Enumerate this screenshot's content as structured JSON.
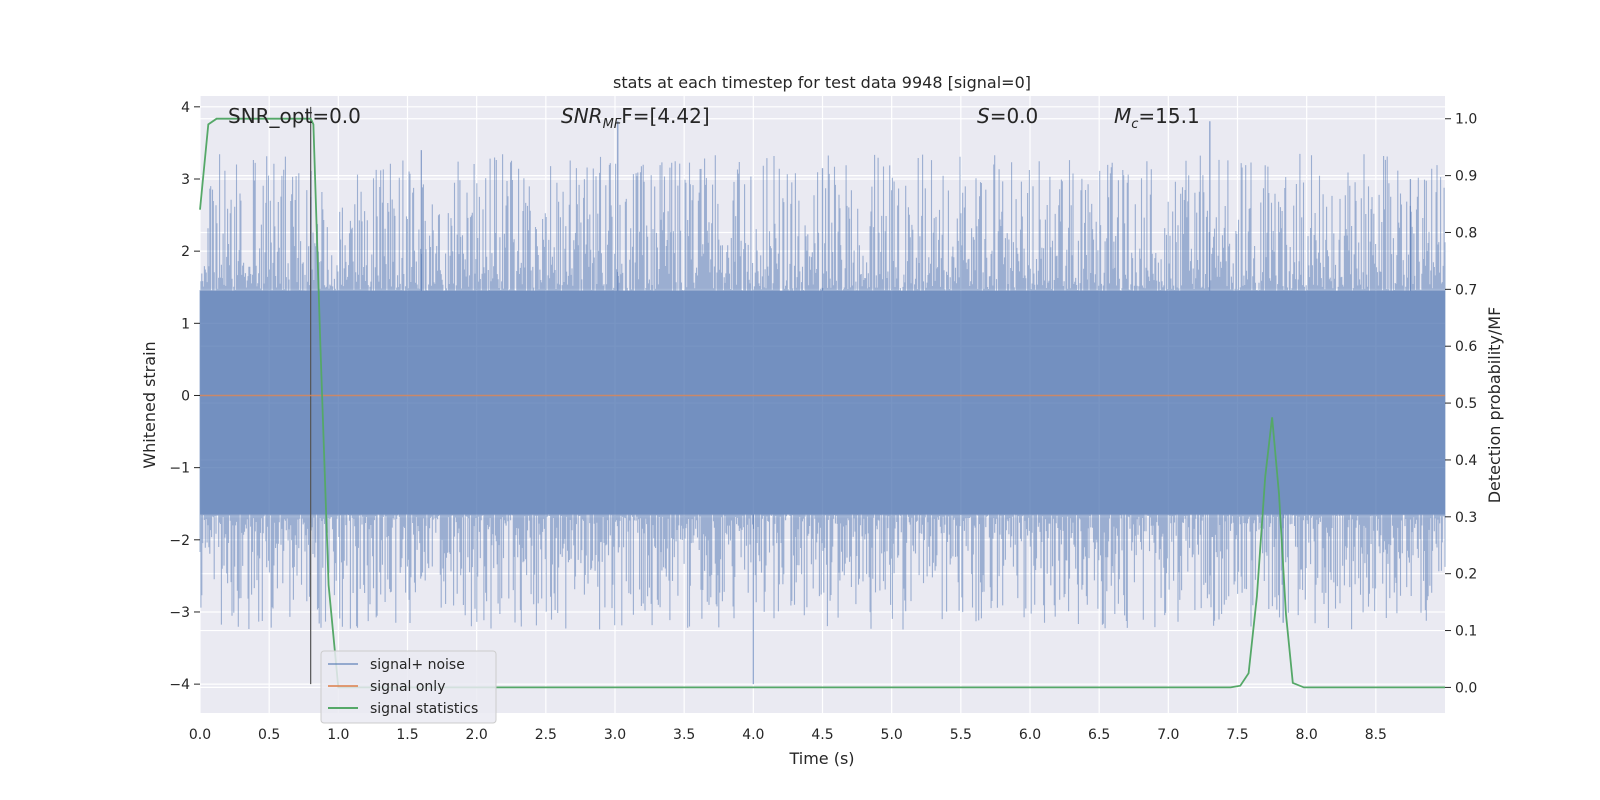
{
  "chart_data": {
    "type": "line",
    "title": "stats at each timestep for test data 9948 [signal=0]",
    "xlabel": "Time (s)",
    "ylabel_left": "Whitened strain",
    "ylabel_right": "Detection probability/MF",
    "xlim": [
      0.0,
      9.0
    ],
    "ylim_left": [
      -4.4,
      4.15
    ],
    "ylim_right": [
      -0.045,
      1.04
    ],
    "x_ticks": [
      0.0,
      0.5,
      1.0,
      1.5,
      2.0,
      2.5,
      3.0,
      3.5,
      4.0,
      4.5,
      5.0,
      5.5,
      6.0,
      6.5,
      7.0,
      7.5,
      8.0,
      8.5
    ],
    "x_tick_labels": [
      "0.0",
      "0.5",
      "1.0",
      "1.5",
      "2.0",
      "2.5",
      "3.0",
      "3.5",
      "4.0",
      "4.5",
      "5.0",
      "5.5",
      "6.0",
      "6.5",
      "7.0",
      "7.5",
      "8.0",
      "8.5"
    ],
    "y_left_ticks": [
      -4,
      -3,
      -2,
      -1,
      0,
      1,
      2,
      3,
      4
    ],
    "y_left_tick_labels": [
      "−4",
      "−3",
      "−2",
      "−1",
      "0",
      "1",
      "2",
      "3",
      "4"
    ],
    "y_right_ticks": [
      0.0,
      0.1,
      0.2,
      0.3,
      0.4,
      0.5,
      0.6,
      0.7,
      0.8,
      0.9,
      1.0
    ],
    "y_right_tick_labels": [
      "0.0",
      "0.1",
      "0.2",
      "0.3",
      "0.4",
      "0.5",
      "0.6",
      "0.7",
      "0.8",
      "0.9",
      "1.0"
    ],
    "grid": true,
    "annotations": {
      "snr_opt": "SNR_opt=0.0",
      "snr_mf_main": "SNR",
      "snr_mf_sub": "MF",
      "snr_mf_value": "F=[4.42]",
      "s_main": "S",
      "s_value": "=0.0",
      "mc_main": "M",
      "mc_sub": "c",
      "mc_value": "=15.1"
    },
    "legend": {
      "placement": "lower-left",
      "entries": [
        "signal+ noise",
        "signal only",
        "signal statistics"
      ]
    },
    "series": [
      {
        "name": "signal+ noise",
        "color": "#4c72b0",
        "axis": "left",
        "description_visible": "dense noise band",
        "band_inner": [
          -1.65,
          1.45
        ],
        "max_peaks": [
          {
            "x": 0.8,
            "y": 2.75
          },
          {
            "x": 1.6,
            "y": 3.4
          },
          {
            "x": 3.02,
            "y": 3.8
          },
          {
            "x": 4.0,
            "y": -4.0
          },
          {
            "x": 4.5,
            "y": 3.15
          },
          {
            "x": 7.3,
            "y": 3.8
          },
          {
            "x": 7.83,
            "y": -3.15
          },
          {
            "x": 8.75,
            "y": 3.0
          }
        ]
      },
      {
        "name": "signal only",
        "color": "#dd8452",
        "axis": "left",
        "x": [
          0.0,
          9.0
        ],
        "y": [
          0.0,
          0.0
        ]
      },
      {
        "name": "signal statistics",
        "color": "#55a868",
        "axis": "right",
        "x": [
          0.0,
          0.06,
          0.12,
          0.2,
          0.3,
          0.5,
          0.7,
          0.8,
          0.82,
          0.87,
          0.93,
          1.0,
          1.5,
          2.0,
          3.0,
          4.0,
          5.0,
          6.0,
          7.0,
          7.45,
          7.52,
          7.58,
          7.64,
          7.7,
          7.75,
          7.8,
          7.85,
          7.9,
          7.98,
          8.2,
          9.0
        ],
        "y": [
          0.84,
          0.99,
          1.0,
          1.0,
          1.0,
          1.0,
          1.0,
          1.0,
          0.99,
          0.6,
          0.18,
          0.0,
          0.0,
          0.0,
          0.0,
          0.0,
          0.0,
          0.0,
          0.0,
          0.0,
          0.003,
          0.025,
          0.16,
          0.37,
          0.475,
          0.34,
          0.13,
          0.008,
          0.0,
          0.0,
          0.0
        ]
      }
    ],
    "vertical_marker": {
      "x": 0.8,
      "y_from": -4.0,
      "y_to": 4.0,
      "color": "#555555"
    }
  }
}
